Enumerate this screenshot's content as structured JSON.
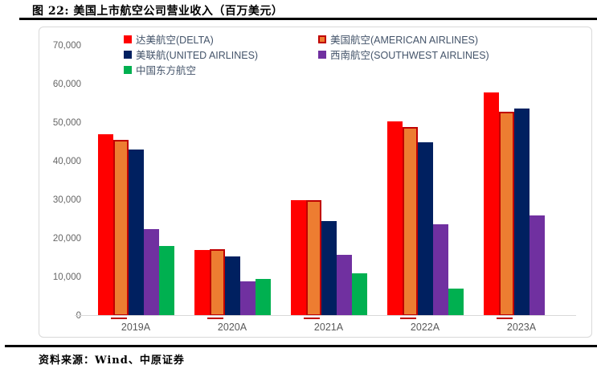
{
  "header": {
    "title": "图 22:  美国上市航空公司营业收入（百万美元）"
  },
  "chart_data": {
    "type": "bar",
    "title": "美国上市航空公司营业收入（百万美元）",
    "categories": [
      "2019A",
      "2020A",
      "2021A",
      "2022A",
      "2023A"
    ],
    "series": [
      {
        "key": "delta",
        "name": "达美航空(DELTA)",
        "color": "#FF0000",
        "values": [
          47000,
          17100,
          29900,
          50500,
          58000
        ]
      },
      {
        "key": "american",
        "name": "美国航空(AMERICAN AIRLINES)",
        "color": "#ED7D31",
        "border_color": "#C00000",
        "values": [
          45700,
          17300,
          30000,
          49000,
          52900
        ]
      },
      {
        "key": "united",
        "name": "美联航(UNITED AIRLINES)",
        "color": "#002060",
        "values": [
          43200,
          15400,
          24600,
          45000,
          53700
        ]
      },
      {
        "key": "southwest",
        "name": "西南航空(SOUTHWEST AIRLINES)",
        "color": "#7030A0",
        "values": [
          22400,
          9000,
          15800,
          23800,
          26100
        ]
      },
      {
        "key": "china-eastern",
        "name": "中国东方航空",
        "color": "#00B050",
        "values": [
          18100,
          9500,
          11000,
          7000,
          null
        ]
      }
    ],
    "ylim": [
      0,
      70000
    ],
    "ytick_step": 10000,
    "ytick_labels": [
      "70,000",
      "60,000",
      "50,000",
      "40,000",
      "30,000",
      "20,000",
      "10,000",
      "0"
    ],
    "legend_position": "top-left, two columns",
    "grid": false,
    "axis_text_color": "#595959",
    "axis_line_color": "#d9d9d9"
  },
  "footer": {
    "source": "资料来源：Wind、中原证券"
  }
}
